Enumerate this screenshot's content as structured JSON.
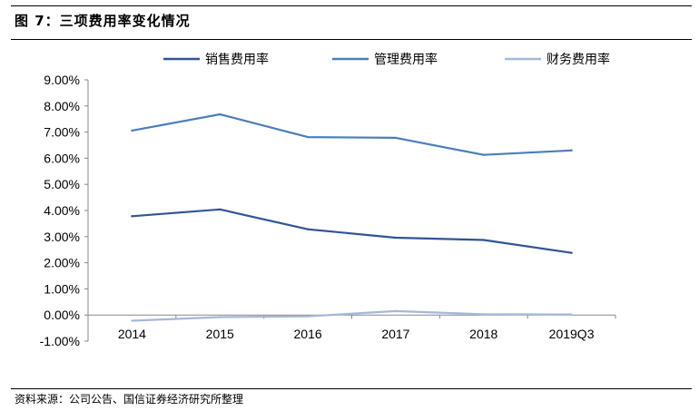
{
  "header": {
    "title": "图 7：三项费用率变化情况"
  },
  "footer": {
    "source": "资料来源：公司公告、国信证券经济研究所整理"
  },
  "chart_data": {
    "type": "line",
    "title": "",
    "xlabel": "",
    "ylabel": "",
    "categories": [
      "2014",
      "2015",
      "2016",
      "2017",
      "2018",
      "2019Q3"
    ],
    "y_ticks": [
      "9.00%",
      "8.00%",
      "7.00%",
      "6.00%",
      "5.00%",
      "4.00%",
      "3.00%",
      "2.00%",
      "1.00%",
      "0.00%",
      "-1.00%"
    ],
    "ylim": [
      -1,
      9
    ],
    "y_unit": "%",
    "grid": false,
    "legend_position": "top",
    "series": [
      {
        "name": "销售费用率",
        "color": "#2f5597",
        "values": [
          3.78,
          4.04,
          3.28,
          2.96,
          2.87,
          2.38
        ]
      },
      {
        "name": "管理费用率",
        "color": "#4a7ebb",
        "values": [
          7.06,
          7.68,
          6.81,
          6.78,
          6.13,
          6.3
        ]
      },
      {
        "name": "财务费用率",
        "color": "#a5b8d8",
        "values": [
          -0.22,
          -0.08,
          -0.05,
          0.15,
          0.03,
          0.02
        ]
      }
    ]
  }
}
